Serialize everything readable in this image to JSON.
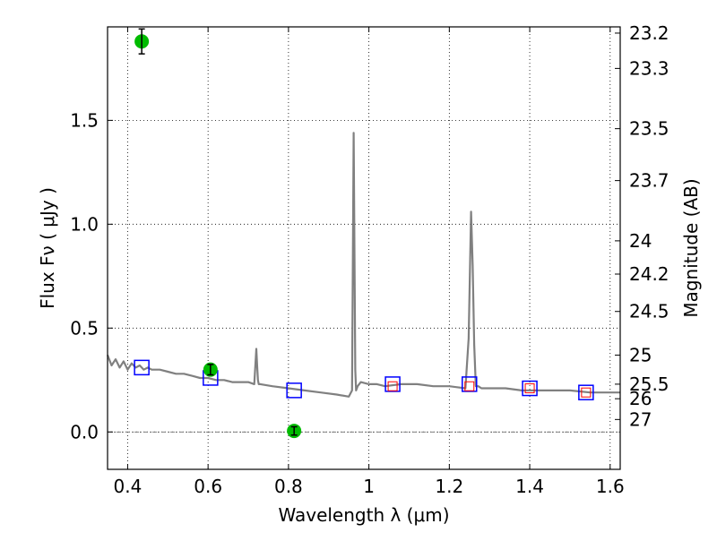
{
  "chart_data": {
    "type": "scatter",
    "xlabel": "Wavelength  λ (μm)",
    "ylabel": "Flux  Fν  ( μJy )",
    "y2label": "Magnitude (AB)",
    "xlim": [
      0.35,
      1.625
    ],
    "ylim": [
      -0.18,
      1.95
    ],
    "grid": true,
    "x_ticks": [
      0.4,
      0.6,
      0.8,
      1.0,
      1.2,
      1.4,
      1.6
    ],
    "x_tick_labels": [
      "0.4",
      "0.6",
      "0.8",
      "1",
      "1.2",
      "1.4",
      "1.6"
    ],
    "y_ticks": [
      0.0,
      0.5,
      1.0,
      1.5
    ],
    "y_tick_labels": [
      "0.0",
      "0.5",
      "1.0",
      "1.5"
    ],
    "magnitude_ticks": [
      {
        "label": "23.2",
        "flux": 1.92
      },
      {
        "label": "23.3",
        "flux": 1.75
      },
      {
        "label": "23.5",
        "flux": 1.46
      },
      {
        "label": "23.7",
        "flux": 1.21
      },
      {
        "label": "24",
        "flux": 0.92
      },
      {
        "label": "24.2",
        "flux": 0.76
      },
      {
        "label": "24.5",
        "flux": 0.58
      },
      {
        "label": "25",
        "flux": 0.37
      },
      {
        "label": "25.5",
        "flux": 0.23
      },
      {
        "label": "26",
        "flux": 0.16
      },
      {
        "label": "27",
        "flux": 0.06
      }
    ],
    "series": [
      {
        "kind": "model_spectrum",
        "color": "#808080",
        "x": [
          0.35,
          0.36,
          0.37,
          0.38,
          0.39,
          0.4,
          0.41,
          0.42,
          0.43,
          0.44,
          0.45,
          0.46,
          0.48,
          0.5,
          0.52,
          0.54,
          0.56,
          0.58,
          0.6,
          0.62,
          0.64,
          0.66,
          0.68,
          0.7,
          0.715,
          0.72,
          0.722,
          0.724,
          0.726,
          0.73,
          0.76,
          0.8,
          0.84,
          0.88,
          0.92,
          0.95,
          0.958,
          0.962,
          0.966,
          0.968,
          0.972,
          0.98,
          1.0,
          1.02,
          1.04,
          1.08,
          1.12,
          1.16,
          1.2,
          1.24,
          1.248,
          1.254,
          1.258,
          1.262,
          1.266,
          1.272,
          1.28,
          1.3,
          1.34,
          1.38,
          1.42,
          1.46,
          1.5,
          1.55,
          1.6,
          1.625
        ],
        "y": [
          0.37,
          0.32,
          0.35,
          0.31,
          0.34,
          0.3,
          0.33,
          0.31,
          0.32,
          0.3,
          0.31,
          0.3,
          0.3,
          0.29,
          0.28,
          0.28,
          0.27,
          0.26,
          0.26,
          0.25,
          0.25,
          0.24,
          0.24,
          0.24,
          0.23,
          0.4,
          0.32,
          0.25,
          0.23,
          0.23,
          0.22,
          0.21,
          0.2,
          0.19,
          0.18,
          0.17,
          0.2,
          1.44,
          0.3,
          0.2,
          0.22,
          0.24,
          0.23,
          0.23,
          0.22,
          0.23,
          0.23,
          0.22,
          0.22,
          0.21,
          0.45,
          1.06,
          0.8,
          0.42,
          0.22,
          0.22,
          0.21,
          0.21,
          0.21,
          0.2,
          0.2,
          0.2,
          0.2,
          0.19,
          0.19,
          0.19
        ]
      },
      {
        "kind": "observed_photometry",
        "color": "#00bb00",
        "x": [
          0.435,
          0.606,
          0.814
        ],
        "y": [
          1.88,
          0.3,
          0.005
        ],
        "yerr": [
          0.06,
          0.025,
          0.02
        ]
      },
      {
        "kind": "model_photometry",
        "color": "#0000ff",
        "x": [
          0.435,
          0.606,
          0.814,
          1.059,
          1.25,
          1.4,
          1.54
        ],
        "y": [
          0.31,
          0.26,
          0.2,
          0.23,
          0.23,
          0.21,
          0.19
        ]
      },
      {
        "kind": "model_photometry_inner",
        "color": "#ff0000",
        "x": [
          1.059,
          1.25,
          1.4,
          1.54
        ],
        "y": [
          0.22,
          0.22,
          0.21,
          0.19
        ]
      }
    ]
  }
}
